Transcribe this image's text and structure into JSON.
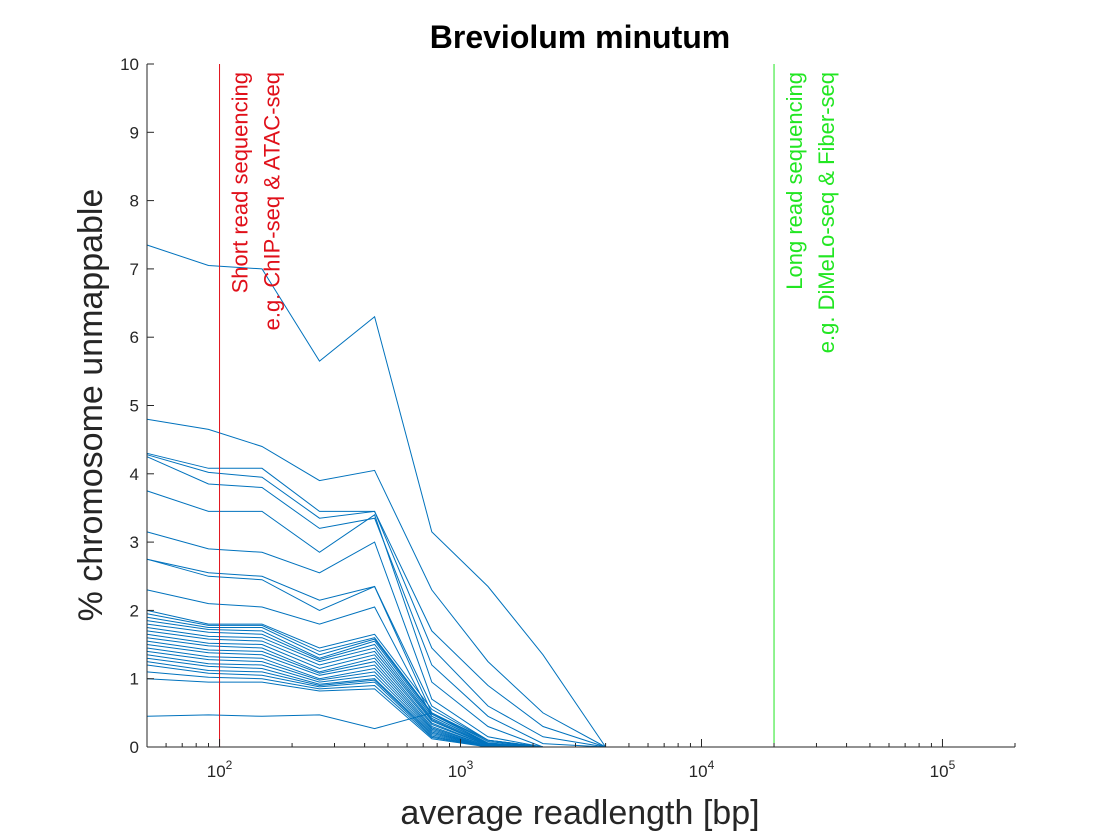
{
  "chart_data": {
    "type": "line",
    "title": "Breviolum minutum",
    "xlabel": "average readlength [bp]",
    "ylabel": "% chromosome unmappable",
    "xscale": "log",
    "xlim": [
      50,
      200000
    ],
    "ylim": [
      0,
      10
    ],
    "yticks": [
      0,
      1,
      2,
      3,
      4,
      5,
      6,
      7,
      8,
      9,
      10
    ],
    "xticks": [
      {
        "value": 100,
        "base": "10",
        "exp": "2"
      },
      {
        "value": 1000,
        "base": "10",
        "exp": "3"
      },
      {
        "value": 10000,
        "base": "10",
        "exp": "4"
      },
      {
        "value": 100000,
        "base": "10",
        "exp": "5"
      }
    ],
    "grid": false,
    "series_color": "#0072BD",
    "x": [
      50,
      90,
      150,
      260,
      440,
      760,
      1300,
      2200,
      4000
    ],
    "series": [
      {
        "values": [
          7.35,
          7.05,
          7.0,
          5.65,
          6.3,
          3.15,
          2.35,
          1.35,
          0
        ]
      },
      {
        "values": [
          4.8,
          4.65,
          4.4,
          3.9,
          4.05,
          2.3,
          1.25,
          0.5,
          0
        ]
      },
      {
        "values": [
          4.3,
          4.08,
          4.08,
          3.45,
          3.45,
          1.7,
          0.9,
          0.3,
          0
        ]
      },
      {
        "values": [
          4.28,
          4.02,
          3.95,
          3.35,
          3.45,
          1.45,
          0.6,
          0.15,
          0
        ]
      },
      {
        "values": [
          4.25,
          3.85,
          3.8,
          3.2,
          3.35,
          1.2,
          0.45,
          0.05,
          0
        ]
      },
      {
        "values": [
          3.75,
          3.45,
          3.45,
          2.85,
          3.4,
          0.95,
          0.3,
          0,
          0
        ]
      },
      {
        "values": [
          3.15,
          2.9,
          2.85,
          2.55,
          3.0,
          0.7,
          0.15,
          0,
          0
        ]
      },
      {
        "values": [
          2.75,
          2.55,
          2.5,
          2.15,
          2.35,
          0.6,
          0.1,
          0,
          0
        ]
      },
      {
        "values": [
          2.75,
          2.5,
          2.45,
          2.0,
          2.35,
          0.5,
          0.05,
          0,
          0
        ]
      },
      {
        "values": [
          2.3,
          2.1,
          2.05,
          1.8,
          2.05,
          0.45,
          0.05,
          0,
          0
        ]
      },
      {
        "values": [
          2.0,
          1.8,
          1.8,
          1.45,
          1.65,
          0.55,
          0.1,
          0,
          0
        ]
      },
      {
        "values": [
          1.95,
          1.78,
          1.78,
          1.4,
          1.6,
          0.5,
          0.08,
          0,
          0
        ]
      },
      {
        "values": [
          1.9,
          1.75,
          1.75,
          1.35,
          1.58,
          0.48,
          0.06,
          0,
          0
        ]
      },
      {
        "values": [
          1.85,
          1.72,
          1.7,
          1.3,
          1.55,
          0.45,
          0.05,
          0,
          0
        ]
      },
      {
        "values": [
          1.8,
          1.68,
          1.65,
          1.28,
          1.5,
          0.42,
          0.04,
          0,
          0
        ]
      },
      {
        "values": [
          1.75,
          1.62,
          1.6,
          1.25,
          1.45,
          0.4,
          0.03,
          0,
          0
        ]
      },
      {
        "values": [
          1.7,
          1.58,
          1.55,
          1.2,
          1.4,
          0.38,
          0.03,
          0,
          0
        ]
      },
      {
        "values": [
          1.65,
          1.52,
          1.5,
          1.15,
          1.35,
          0.35,
          0.02,
          0,
          0
        ]
      },
      {
        "values": [
          1.6,
          1.48,
          1.45,
          1.1,
          1.3,
          0.33,
          0.02,
          0,
          0
        ]
      },
      {
        "values": [
          1.55,
          1.42,
          1.4,
          1.08,
          1.25,
          0.3,
          0.01,
          0,
          0
        ]
      },
      {
        "values": [
          1.5,
          1.38,
          1.35,
          1.05,
          1.2,
          0.28,
          0.01,
          0,
          0
        ]
      },
      {
        "values": [
          1.45,
          1.32,
          1.3,
          1.0,
          1.15,
          0.26,
          0,
          0,
          0
        ]
      },
      {
        "values": [
          1.4,
          1.28,
          1.25,
          0.98,
          1.1,
          0.24,
          0,
          0,
          0
        ]
      },
      {
        "values": [
          1.35,
          1.22,
          1.2,
          0.95,
          1.05,
          0.22,
          0,
          0,
          0
        ]
      },
      {
        "values": [
          1.3,
          1.18,
          1.15,
          0.92,
          1.0,
          0.2,
          0,
          0,
          0
        ]
      },
      {
        "values": [
          1.25,
          1.12,
          1.1,
          0.9,
          0.98,
          0.18,
          0,
          0,
          0
        ]
      },
      {
        "values": [
          1.2,
          1.08,
          1.05,
          0.88,
          0.95,
          0.16,
          0,
          0,
          0
        ]
      },
      {
        "values": [
          1.1,
          1.02,
          1.0,
          0.85,
          0.9,
          0.14,
          0,
          0,
          0
        ]
      },
      {
        "values": [
          1.0,
          0.95,
          0.95,
          0.82,
          0.85,
          0.12,
          0,
          0,
          0
        ]
      },
      {
        "values": [
          0.45,
          0.47,
          0.45,
          0.47,
          0.27,
          0.5,
          0.1,
          0,
          0
        ]
      }
    ],
    "annotations": [
      {
        "x": 100,
        "color": "#e0101a",
        "lines": [
          "Short read sequencing",
          "e.g. ChIP-seq & ATAC-seq"
        ]
      },
      {
        "x": 20000,
        "color": "#22e622",
        "lines": [
          "Long read sequencing",
          "e.g. DiMeLo-seq & Fiber-seq"
        ]
      }
    ]
  }
}
